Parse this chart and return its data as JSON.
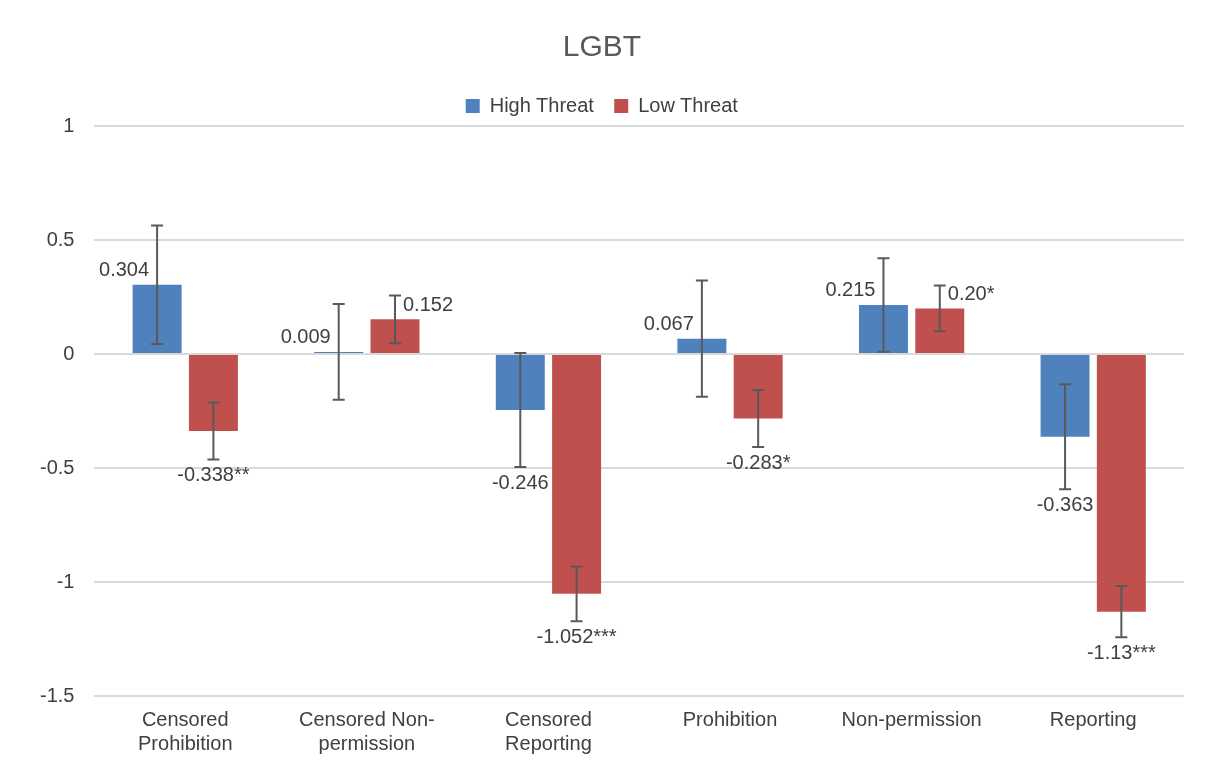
{
  "chart_data": {
    "type": "bar",
    "title": "LGBT",
    "categories": [
      "Censored Prohibition",
      "Censored Non-permission",
      "Censored Reporting",
      "Prohibition",
      "Non-permission",
      "Reporting"
    ],
    "series": [
      {
        "name": "High Threat",
        "color": "#4f81bd",
        "values": [
          0.304,
          0.009,
          -0.246,
          0.067,
          0.215,
          -0.363
        ],
        "errors": [
          0.26,
          0.21,
          0.25,
          0.255,
          0.205,
          0.23
        ],
        "value_labels": [
          "0.304",
          "0.009",
          "-0.246",
          "0.067",
          "0.215",
          "-0.363"
        ]
      },
      {
        "name": "Low Threat",
        "color": "#c0504d",
        "values": [
          -0.338,
          0.152,
          -1.052,
          -0.283,
          0.2,
          -1.13
        ],
        "errors": [
          0.125,
          0.105,
          0.12,
          0.125,
          0.1,
          0.112
        ],
        "value_labels": [
          "-0.338**",
          "0.152",
          "-1.052***",
          "-0.283*",
          "0.20*",
          "-1.13***"
        ]
      }
    ],
    "ylim": [
      -1.5,
      1
    ],
    "yticks": [
      -1.5,
      -1,
      -0.5,
      0,
      0.5,
      1
    ],
    "grid": "y",
    "legend": "top"
  }
}
